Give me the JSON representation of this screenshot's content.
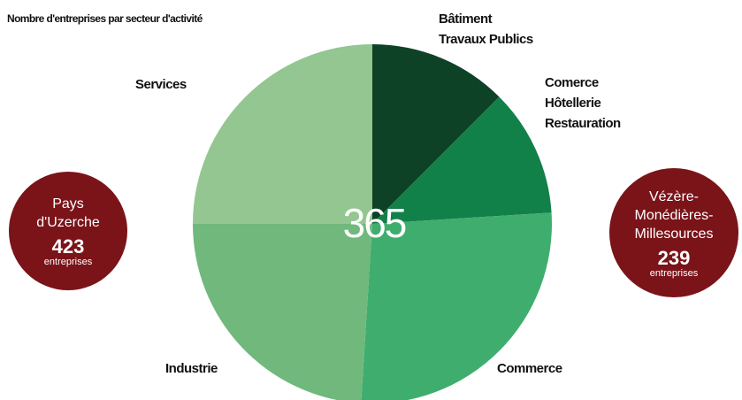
{
  "chart_data": {
    "type": "pie",
    "title": "Nombre d'entreprises par secteur d'activité",
    "total": "365",
    "slices": [
      {
        "label": [
          "Bâtiment",
          "Travaux Publics"
        ],
        "value": 12.5,
        "color": "#0e4226"
      },
      {
        "label": [
          "Comerce",
          "Hôtellerie",
          "Restauration"
        ],
        "value": 11.5,
        "color": "#128049"
      },
      {
        "label": [
          "Commerce"
        ],
        "value": 27.0,
        "color": "#3fad6e"
      },
      {
        "label": [
          "Industrie"
        ],
        "value": 24.0,
        "color": "#70b87c"
      },
      {
        "label": [
          "Services"
        ],
        "value": 25.0,
        "color": "#93c690"
      }
    ]
  },
  "badges": {
    "left": {
      "name": [
        "Pays",
        "d'Uzerche"
      ],
      "count": "423",
      "unit": "entreprises"
    },
    "right": {
      "name": [
        "Vézère-",
        "Monédières-",
        "Millesources"
      ],
      "count": "239",
      "unit": "entreprises"
    }
  }
}
